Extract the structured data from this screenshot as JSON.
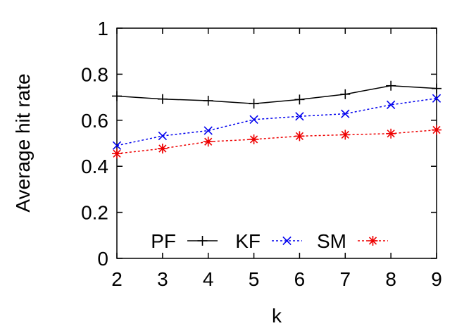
{
  "chart_data": {
    "type": "line",
    "title": "",
    "xlabel": "k",
    "ylabel": "Average hit rate",
    "x": [
      2,
      3,
      4,
      5,
      6,
      7,
      8,
      9
    ],
    "xlim": [
      2,
      9
    ],
    "ylim": [
      0,
      1
    ],
    "x_ticks": [
      "2",
      "3",
      "4",
      "5",
      "6",
      "7",
      "8",
      "9"
    ],
    "y_ticks": [
      "0",
      "0.2",
      "0.4",
      "0.6",
      "0.8",
      "1"
    ],
    "grid": false,
    "legend_position": "bottom",
    "series": [
      {
        "name": "PF",
        "color": "#000000",
        "marker": "plus",
        "dash": "solid",
        "values": [
          0.705,
          0.692,
          0.685,
          0.672,
          0.69,
          0.713,
          0.75,
          0.738
        ]
      },
      {
        "name": "KF",
        "color": "#0000ee",
        "marker": "x",
        "dash": "dotted",
        "values": [
          0.49,
          0.532,
          0.555,
          0.603,
          0.617,
          0.628,
          0.667,
          0.695
        ]
      },
      {
        "name": "SM",
        "color": "#ee0000",
        "marker": "asterisk",
        "dash": "dotted",
        "values": [
          0.455,
          0.477,
          0.507,
          0.517,
          0.531,
          0.537,
          0.542,
          0.558
        ]
      }
    ]
  }
}
